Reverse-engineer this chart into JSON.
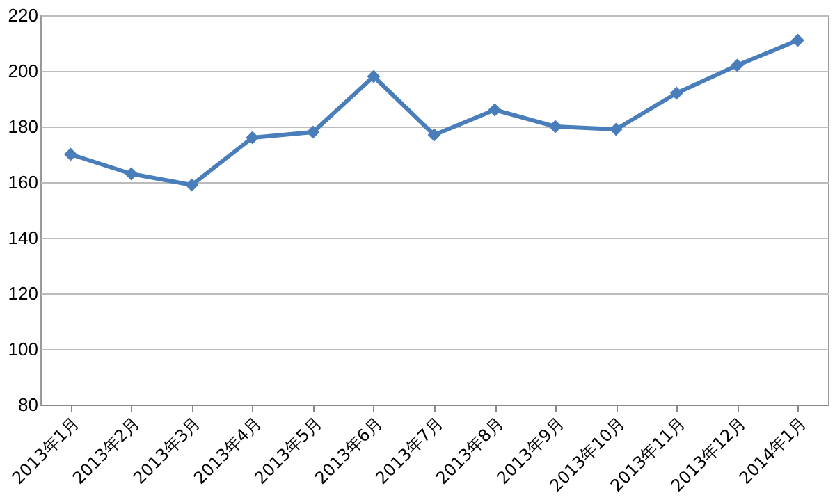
{
  "chart_data": {
    "type": "line",
    "categories": [
      "2013年1月",
      "2013年2月",
      "2013年3月",
      "2013年4月",
      "2013年5月",
      "2013年6月",
      "2013年7月",
      "2013年8月",
      "2013年9月",
      "2013年10月",
      "2013年11月",
      "2013年12月",
      "2014年1月"
    ],
    "series": [
      {
        "color": "#4a7ebb",
        "values": [
          170,
          163,
          159,
          176,
          178,
          198,
          177,
          186,
          180,
          179,
          192,
          202,
          211
        ]
      }
    ],
    "ylim": [
      80,
      220
    ],
    "yticks": [
      80,
      100,
      120,
      140,
      160,
      180,
      200,
      220
    ],
    "grid": "y",
    "marker": "diamond",
    "line_style": "solid"
  }
}
